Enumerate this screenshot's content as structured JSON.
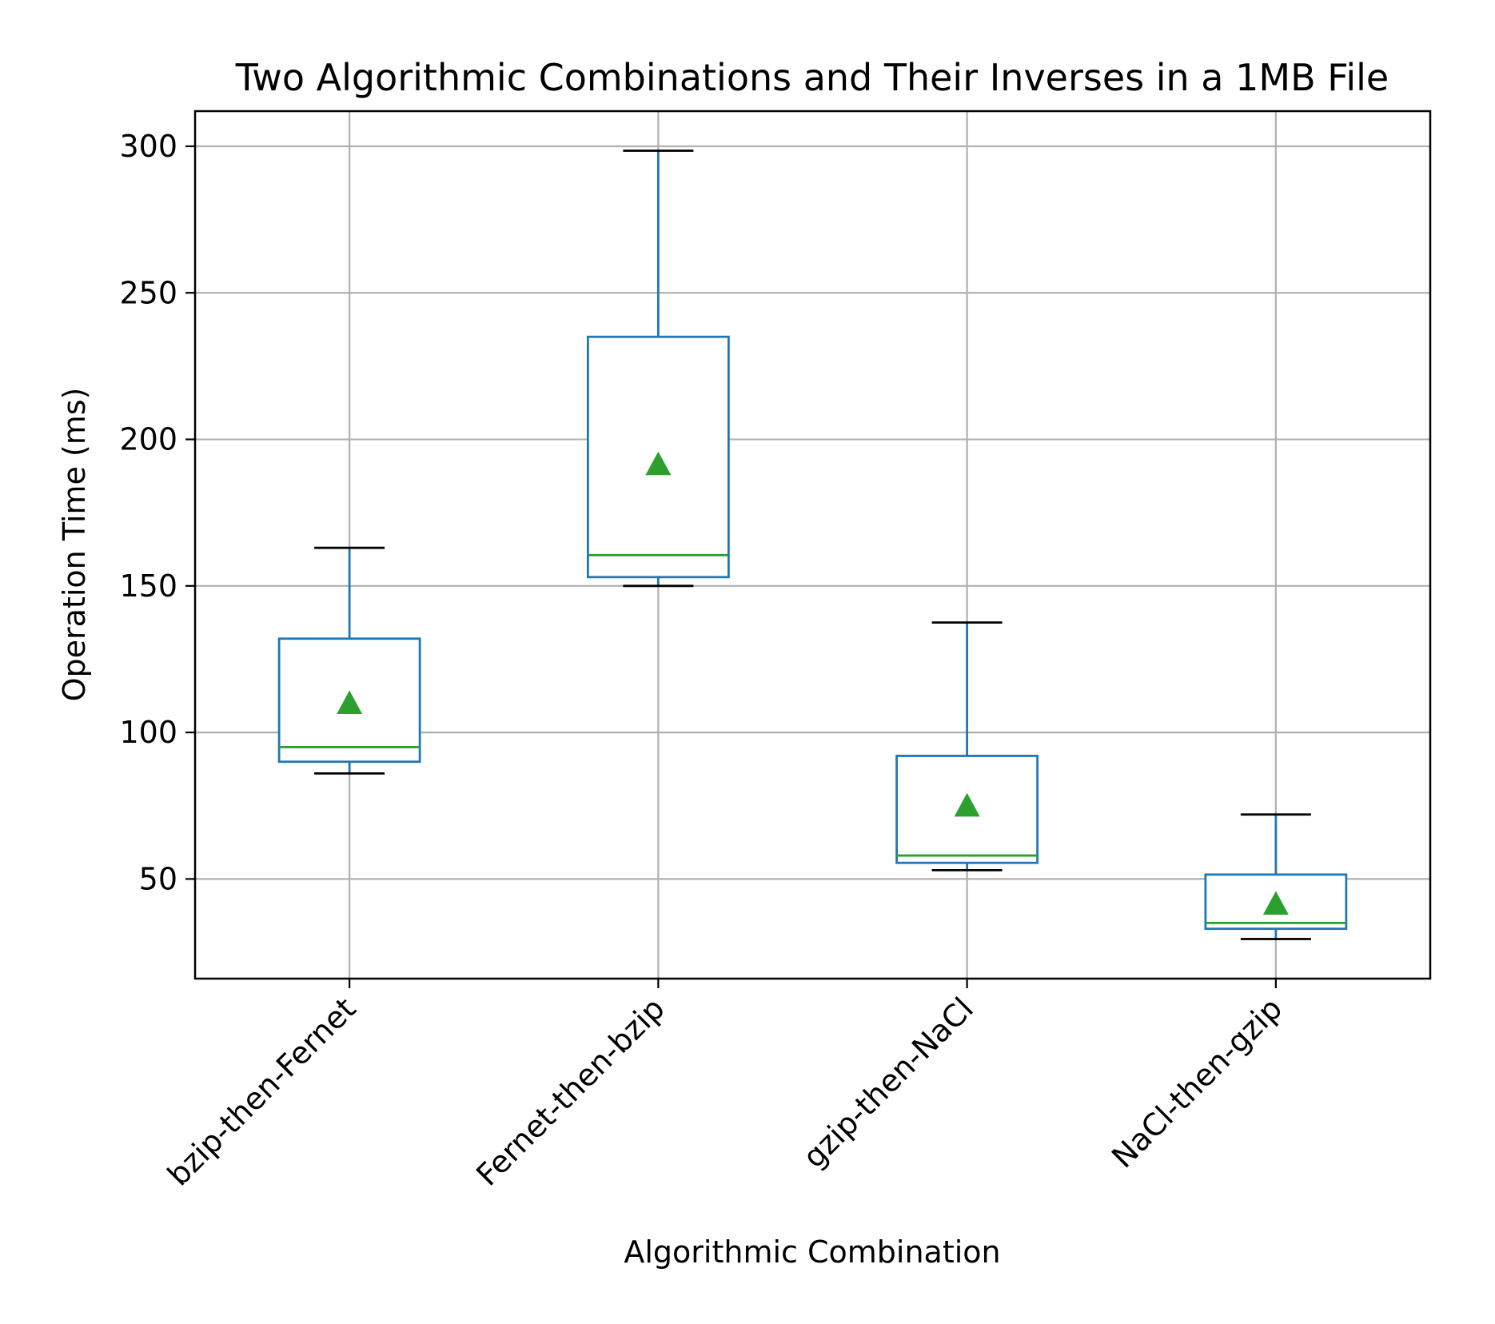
{
  "chart_data": {
    "type": "box",
    "title": "Two Algorithmic Combinations and Their Inverses in a 1MB File",
    "xlabel": "Algorithmic Combination",
    "ylabel": "Operation Time (ms)",
    "ylim": [
      16,
      312
    ],
    "yticks": [
      50,
      100,
      150,
      200,
      250,
      300
    ],
    "grid": true,
    "categories": [
      "bzip-then-Fernet",
      "Fernet-then-bzip",
      "gzip-then-NaCl",
      "NaCl-then-gzip"
    ],
    "boxes": [
      {
        "category": "bzip-then-Fernet",
        "whisker_low": 86,
        "q1": 90,
        "median": 95,
        "q3": 132,
        "whisker_high": 163,
        "mean": 110
      },
      {
        "category": "Fernet-then-bzip",
        "whisker_low": 150,
        "q1": 153,
        "median": 160.5,
        "q3": 235,
        "whisker_high": 298.5,
        "mean": 191.5
      },
      {
        "category": "gzip-then-NaCl",
        "whisker_low": 53,
        "q1": 55.5,
        "median": 58,
        "q3": 92,
        "whisker_high": 137.5,
        "mean": 75
      },
      {
        "category": "NaCl-then-gzip",
        "whisker_low": 29.5,
        "q1": 33,
        "median": 35,
        "q3": 51.5,
        "whisker_high": 72,
        "mean": 41.5
      }
    ],
    "colors": {
      "box": "#1f77b4",
      "median": "#2ca02c",
      "mean_marker": "#2ca02c",
      "whisker_cap": "#000000",
      "grid": "#b0b0b0",
      "axes": "#000000"
    }
  }
}
